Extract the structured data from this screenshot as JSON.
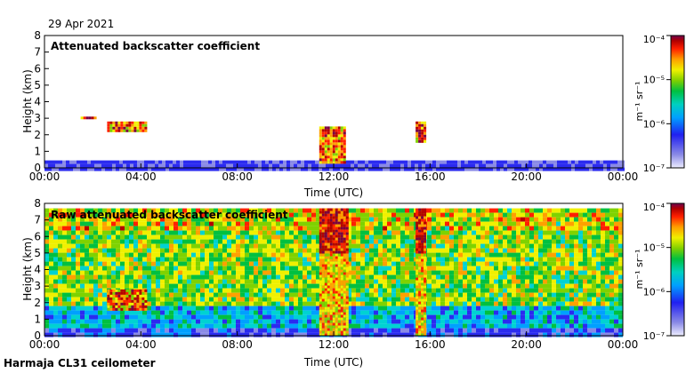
{
  "date": "29 Apr 2021",
  "instrument": "Harmaja CL31 ceilometer",
  "colors": {
    "scale": [
      "#d8d8f4",
      "#8a8ae6",
      "#2b2bf0",
      "#00a0ff",
      "#00d2d2",
      "#00c040",
      "#7fd200",
      "#f0f000",
      "#ffa000",
      "#ff2000",
      "#b40000",
      "#7a0040"
    ]
  },
  "chart_data": [
    {
      "type": "heatmap",
      "title": "Attenuated backscatter coefficient",
      "xlabel": "Time (UTC)",
      "ylabel": "Height (km)",
      "xlim": [
        0,
        24
      ],
      "ylim": [
        0,
        8
      ],
      "x_ticks": [
        "00:00",
        "04:00",
        "08:00",
        "12:00",
        "16:00",
        "20:00",
        "00:00"
      ],
      "y_ticks": [
        "0",
        "1",
        "2",
        "3",
        "4",
        "5",
        "6",
        "7",
        "8"
      ],
      "colorbar": {
        "scale": "log",
        "range": [
          1e-07,
          0.0001
        ],
        "unit": "m⁻¹ sr⁻¹",
        "ticks": [
          "10⁻⁷",
          "10⁻⁶",
          "10⁻⁵",
          "10⁻⁴"
        ]
      },
      "features": [
        {
          "kind": "surface-layer",
          "t": [
            0,
            24
          ],
          "h": [
            0,
            0.45
          ]
        },
        {
          "kind": "cloud-layer",
          "t": [
            1.5,
            2.1
          ],
          "h": [
            3.0,
            3.1
          ]
        },
        {
          "kind": "cloud-layer",
          "t": [
            2.6,
            4.2
          ],
          "h": [
            2.2,
            2.8
          ]
        },
        {
          "kind": "cloud-layer",
          "t": [
            11.4,
            12.5
          ],
          "h": [
            0.4,
            2.5
          ]
        },
        {
          "kind": "cloud-layer",
          "t": [
            15.4,
            15.8
          ],
          "h": [
            1.6,
            2.8
          ]
        }
      ]
    },
    {
      "type": "heatmap",
      "title": "Raw attenuated backscatter coefficient",
      "xlabel": "Time (UTC)",
      "ylabel": "Height (km)",
      "xlim": [
        0,
        24
      ],
      "ylim": [
        0,
        8
      ],
      "x_ticks": [
        "00:00",
        "04:00",
        "08:00",
        "12:00",
        "16:00",
        "20:00",
        "00:00"
      ],
      "y_ticks": [
        "0",
        "1",
        "2",
        "3",
        "4",
        "5",
        "6",
        "7",
        "8"
      ],
      "colorbar": {
        "scale": "log",
        "range": [
          1e-07,
          0.0001
        ],
        "unit": "m⁻¹ sr⁻¹",
        "ticks": [
          "10⁻⁷",
          "10⁻⁶",
          "10⁻⁵",
          "10⁻⁴"
        ]
      },
      "features": [
        {
          "kind": "noise-field",
          "t": [
            0,
            24
          ],
          "h": [
            0,
            7.7
          ]
        },
        {
          "kind": "cloud-layer",
          "t": [
            2.6,
            4.2
          ],
          "h": [
            1.6,
            2.8
          ]
        },
        {
          "kind": "cloud-column",
          "t": [
            11.4,
            12.6
          ],
          "h": [
            0,
            7.7
          ]
        },
        {
          "kind": "cloud-column",
          "t": [
            15.4,
            15.8
          ],
          "h": [
            0,
            7.7
          ]
        }
      ]
    }
  ]
}
